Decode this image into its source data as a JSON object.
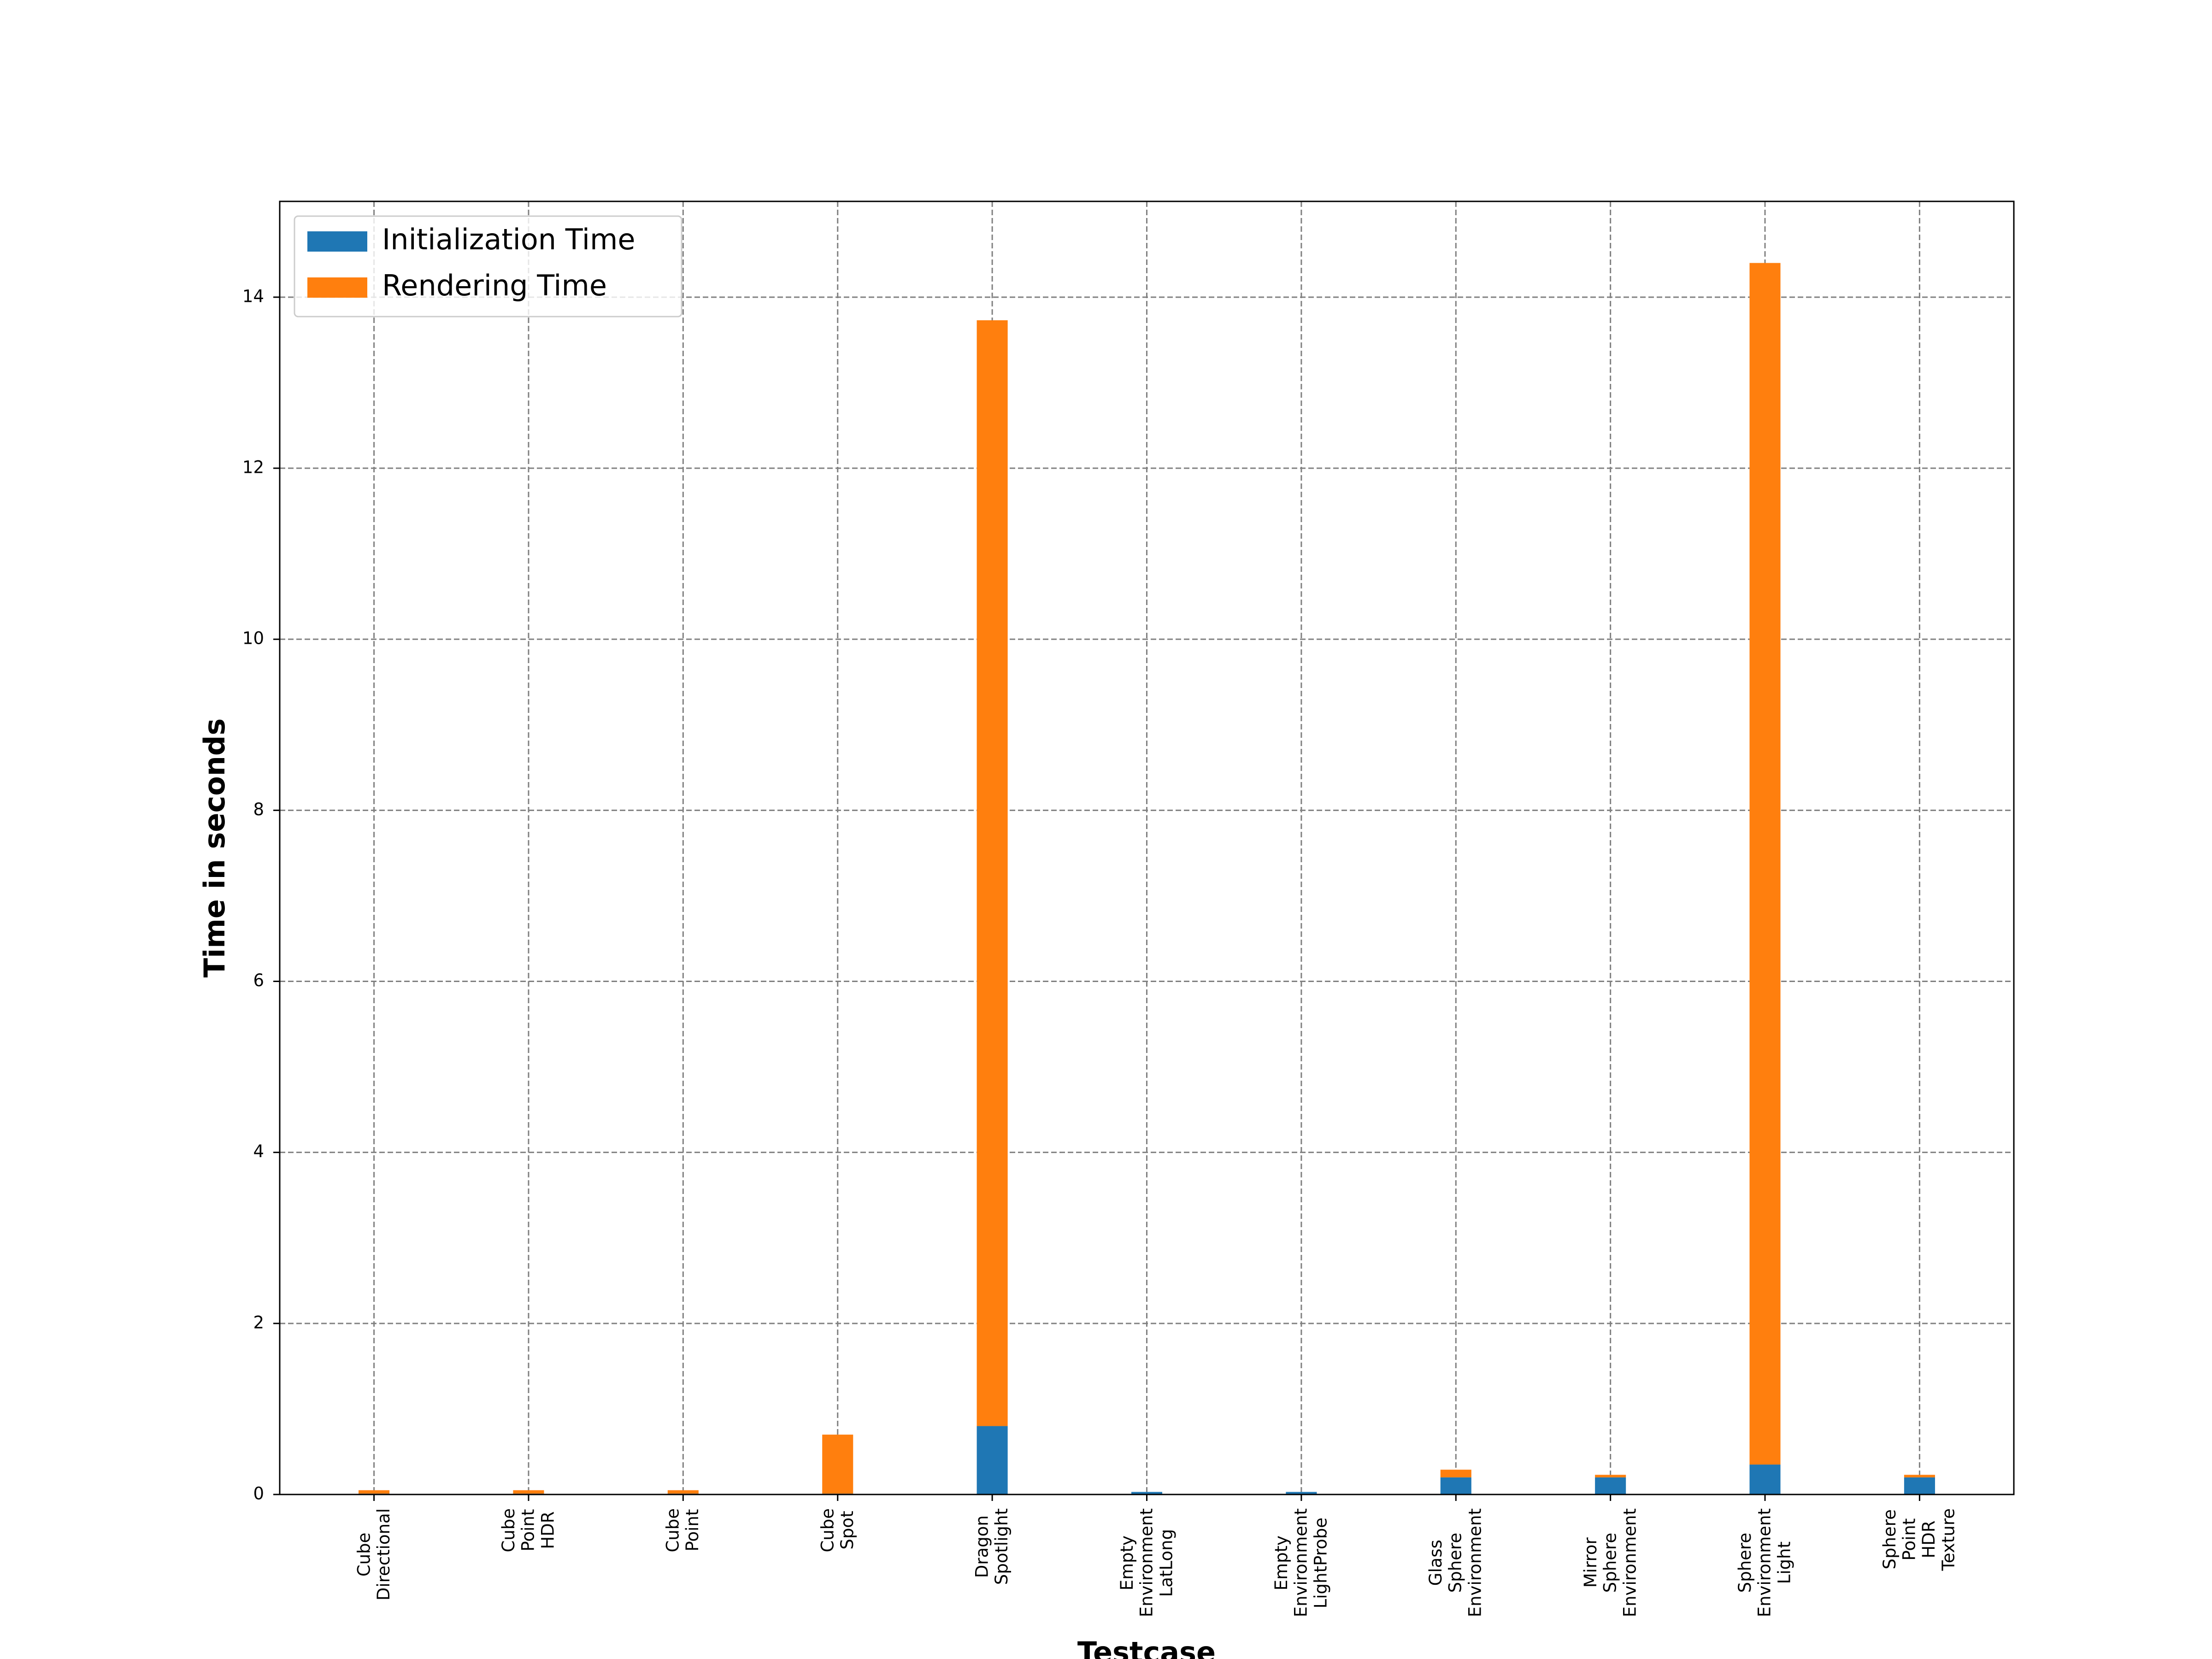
{
  "chart_data": {
    "type": "stacked_bar",
    "x_label": "Testcase",
    "y_label": "Time in seconds",
    "categories": [
      "Cube\nDirectional",
      "Cube\nPoint\nHDR",
      "Cube\nPoint",
      "Cube\nSpot",
      "Dragon\nSpotlight",
      "Empty\nEnvironment\nLatLong",
      "Empty\nEnvironment\nLightProbe",
      "Glass\nSphere\nEnvironment",
      "Mirror\nSphere\nEnvironment",
      "Sphere\nEnvironment\nLight",
      "Sphere\nPoint\nHDR\nTexture"
    ],
    "series": [
      {
        "name": "Initialization Time",
        "color": "#1f77b4",
        "values": [
          0.01,
          0.01,
          0.01,
          0.01,
          0.8,
          0.03,
          0.03,
          0.2,
          0.2,
          0.35,
          0.2
        ]
      },
      {
        "name": "Rendering Time",
        "color": "#ff7f0e",
        "values": [
          0.04,
          0.04,
          0.04,
          0.69,
          12.93,
          0.0,
          0.0,
          0.09,
          0.03,
          14.05,
          0.03
        ]
      }
    ],
    "ylim": [
      0,
      15.12
    ],
    "yticks": [
      0,
      2,
      4,
      6,
      8,
      10,
      12,
      14
    ],
    "grid": true,
    "legend": "upper left"
  }
}
